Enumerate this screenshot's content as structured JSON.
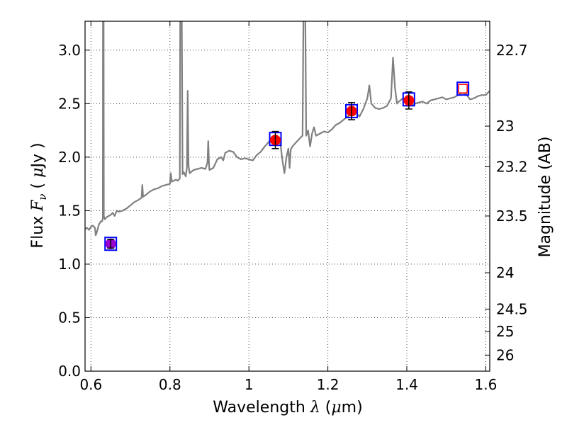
{
  "chart_data": {
    "type": "scatter",
    "title": "",
    "xlabel": {
      "prefix": "Wavelength",
      "symbol": "λ",
      "open": "(",
      "mu": "μ",
      "unit": "m)"
    },
    "ylabel": {
      "prefix": "Flux",
      "symbol": "F",
      "subscript": "ν",
      "open": "(",
      "mu": "μ",
      "unit": "Jy",
      "close": ")"
    },
    "y2label": "Magnitude (AB)",
    "xlim": [
      0.585,
      1.61
    ],
    "ylim": [
      0.0,
      3.27
    ],
    "grid": true,
    "x_ticks": [
      {
        "value": 0.6,
        "label": "0.6"
      },
      {
        "value": 0.8,
        "label": "0.8"
      },
      {
        "value": 1.0,
        "label": "1"
      },
      {
        "value": 1.2,
        "label": "1.2"
      },
      {
        "value": 1.4,
        "label": "1.4"
      },
      {
        "value": 1.6,
        "label": "1.6"
      }
    ],
    "y_ticks": [
      {
        "value": 0.0,
        "label": "0.0"
      },
      {
        "value": 0.5,
        "label": "0.5"
      },
      {
        "value": 1.0,
        "label": "1.0"
      },
      {
        "value": 1.5,
        "label": "1.5"
      },
      {
        "value": 2.0,
        "label": "2.0"
      },
      {
        "value": 2.5,
        "label": "2.5"
      },
      {
        "value": 3.0,
        "label": "3.0"
      }
    ],
    "y2_ticks": [
      {
        "flux": 3.0,
        "label": "22.7"
      },
      {
        "flux": 2.29,
        "label": "23"
      },
      {
        "flux": 1.91,
        "label": "23.2"
      },
      {
        "flux": 1.45,
        "label": "23.5"
      },
      {
        "flux": 0.92,
        "label": "24"
      },
      {
        "flux": 0.58,
        "label": "24.5"
      },
      {
        "flux": 0.37,
        "label": "25"
      },
      {
        "flux": 0.15,
        "label": "26"
      }
    ],
    "series": [
      {
        "kind": "model_spectrum",
        "color": "#808080",
        "points": [
          [
            0.585,
            1.33
          ],
          [
            0.59,
            1.34
          ],
          [
            0.595,
            1.32
          ],
          [
            0.6,
            1.35
          ],
          [
            0.605,
            1.36
          ],
          [
            0.61,
            1.34
          ],
          [
            0.612,
            1.27
          ],
          [
            0.615,
            1.3
          ],
          [
            0.62,
            1.37
          ],
          [
            0.625,
            1.4
          ],
          [
            0.628,
            1.4
          ],
          [
            0.63,
            1.43
          ],
          [
            0.6305,
            3.3
          ],
          [
            0.632,
            3.3
          ],
          [
            0.6325,
            1.45
          ],
          [
            0.635,
            1.42
          ],
          [
            0.64,
            1.44
          ],
          [
            0.645,
            1.45
          ],
          [
            0.65,
            1.46
          ],
          [
            0.655,
            1.48
          ],
          [
            0.66,
            1.45
          ],
          [
            0.665,
            1.5
          ],
          [
            0.67,
            1.49
          ],
          [
            0.68,
            1.5
          ],
          [
            0.69,
            1.52
          ],
          [
            0.7,
            1.55
          ],
          [
            0.71,
            1.58
          ],
          [
            0.72,
            1.6
          ],
          [
            0.728,
            1.62
          ],
          [
            0.73,
            1.74
          ],
          [
            0.732,
            1.63
          ],
          [
            0.74,
            1.65
          ],
          [
            0.75,
            1.68
          ],
          [
            0.76,
            1.7
          ],
          [
            0.77,
            1.71
          ],
          [
            0.78,
            1.73
          ],
          [
            0.79,
            1.74
          ],
          [
            0.8,
            1.75
          ],
          [
            0.802,
            1.85
          ],
          [
            0.805,
            1.77
          ],
          [
            0.81,
            1.78
          ],
          [
            0.815,
            1.79
          ],
          [
            0.82,
            1.78
          ],
          [
            0.825,
            1.8
          ],
          [
            0.826,
            3.3
          ],
          [
            0.83,
            3.3
          ],
          [
            0.832,
            1.84
          ],
          [
            0.835,
            1.86
          ],
          [
            0.84,
            1.82
          ],
          [
            0.843,
            1.9
          ],
          [
            0.845,
            2.62
          ],
          [
            0.847,
            1.92
          ],
          [
            0.85,
            1.85
          ],
          [
            0.86,
            1.88
          ],
          [
            0.87,
            1.89
          ],
          [
            0.88,
            1.9
          ],
          [
            0.89,
            1.89
          ],
          [
            0.895,
            1.95
          ],
          [
            0.897,
            2.15
          ],
          [
            0.899,
            1.94
          ],
          [
            0.9,
            1.88
          ],
          [
            0.91,
            1.9
          ],
          [
            0.92,
            1.98
          ],
          [
            0.93,
            2.0
          ],
          [
            0.935,
            1.97
          ],
          [
            0.94,
            2.04
          ],
          [
            0.95,
            2.06
          ],
          [
            0.96,
            2.05
          ],
          [
            0.97,
            2.0
          ],
          [
            0.98,
            1.98
          ],
          [
            0.99,
            1.99
          ],
          [
            1.0,
            1.98
          ],
          [
            1.01,
            1.97
          ],
          [
            1.02,
            2.02
          ],
          [
            1.03,
            2.05
          ],
          [
            1.04,
            2.1
          ],
          [
            1.05,
            2.14
          ],
          [
            1.06,
            2.18
          ],
          [
            1.07,
            2.17
          ],
          [
            1.075,
            2.15
          ],
          [
            1.08,
            2.12
          ],
          [
            1.085,
            1.97
          ],
          [
            1.09,
            1.85
          ],
          [
            1.095,
            2.0
          ],
          [
            1.1,
            2.08
          ],
          [
            1.103,
            1.9
          ],
          [
            1.106,
            2.07
          ],
          [
            1.11,
            2.1
          ],
          [
            1.12,
            2.14
          ],
          [
            1.13,
            2.18
          ],
          [
            1.136,
            2.2
          ],
          [
            1.138,
            3.3
          ],
          [
            1.143,
            3.3
          ],
          [
            1.145,
            2.2
          ],
          [
            1.15,
            2.25
          ],
          [
            1.155,
            2.1
          ],
          [
            1.16,
            2.22
          ],
          [
            1.165,
            2.28
          ],
          [
            1.17,
            2.2
          ],
          [
            1.18,
            2.22
          ],
          [
            1.19,
            2.24
          ],
          [
            1.2,
            2.23
          ],
          [
            1.21,
            2.26
          ],
          [
            1.22,
            2.3
          ],
          [
            1.23,
            2.32
          ],
          [
            1.24,
            2.35
          ],
          [
            1.25,
            2.38
          ],
          [
            1.26,
            2.4
          ],
          [
            1.27,
            2.42
          ],
          [
            1.28,
            2.38
          ],
          [
            1.29,
            2.45
          ],
          [
            1.3,
            2.55
          ],
          [
            1.305,
            2.67
          ],
          [
            1.31,
            2.5
          ],
          [
            1.32,
            2.46
          ],
          [
            1.33,
            2.45
          ],
          [
            1.34,
            2.46
          ],
          [
            1.35,
            2.48
          ],
          [
            1.36,
            2.55
          ],
          [
            1.365,
            2.93
          ],
          [
            1.37,
            2.65
          ],
          [
            1.375,
            2.5
          ],
          [
            1.38,
            2.52
          ],
          [
            1.39,
            2.55
          ],
          [
            1.4,
            2.5
          ],
          [
            1.41,
            2.48
          ],
          [
            1.42,
            2.5
          ],
          [
            1.43,
            2.51
          ],
          [
            1.44,
            2.52
          ],
          [
            1.45,
            2.5
          ],
          [
            1.46,
            2.53
          ],
          [
            1.47,
            2.54
          ],
          [
            1.48,
            2.55
          ],
          [
            1.49,
            2.56
          ],
          [
            1.5,
            2.54
          ],
          [
            1.51,
            2.55
          ],
          [
            1.52,
            2.56
          ],
          [
            1.53,
            2.58
          ],
          [
            1.54,
            2.6
          ],
          [
            1.55,
            2.59
          ],
          [
            1.56,
            2.54
          ],
          [
            1.57,
            2.55
          ],
          [
            1.58,
            2.57
          ],
          [
            1.59,
            2.58
          ],
          [
            1.6,
            2.58
          ],
          [
            1.61,
            2.62
          ]
        ]
      },
      {
        "kind": "model_photometry",
        "marker": "open-square",
        "color": "#0000ff",
        "points": [
          {
            "x": 0.65,
            "y": 1.19
          },
          {
            "x": 1.067,
            "y": 2.17
          },
          {
            "x": 1.26,
            "y": 2.43
          },
          {
            "x": 1.405,
            "y": 2.54
          },
          {
            "x": 1.542,
            "y": 2.64
          }
        ]
      },
      {
        "kind": "observed_photometry",
        "marker": "filled-circle",
        "color": "#ff0000",
        "error_color": "#000000",
        "points": [
          {
            "x": 0.65,
            "y": 1.19,
            "err": 0.04,
            "color": "#9900cc"
          },
          {
            "x": 1.067,
            "y": 2.16,
            "err": 0.08,
            "color": "#ff0000"
          },
          {
            "x": 1.26,
            "y": 2.43,
            "err": 0.08,
            "color": "#ff0000"
          },
          {
            "x": 1.405,
            "y": 2.53,
            "err": 0.08,
            "color": "#ff0000"
          }
        ]
      },
      {
        "kind": "upper_limit",
        "marker": "open-square-red",
        "color": "#ff0000",
        "points": [
          {
            "x": 1.542,
            "y": 2.64
          }
        ]
      }
    ]
  }
}
